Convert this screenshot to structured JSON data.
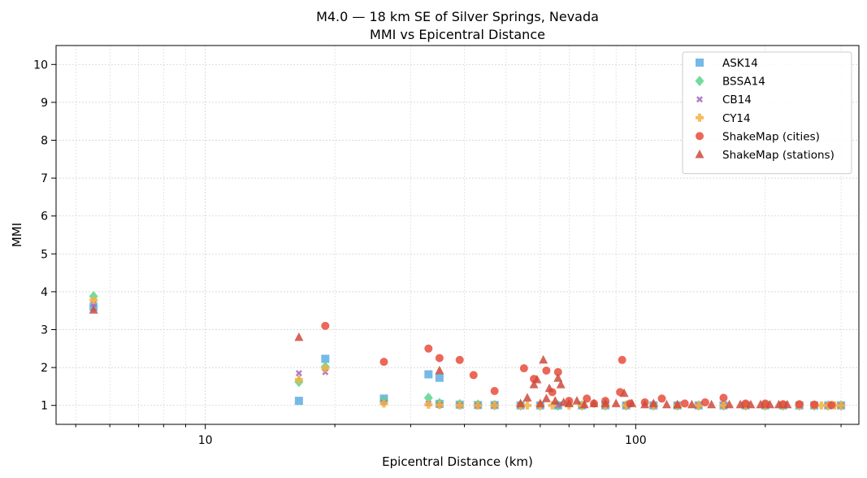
{
  "chart_data": {
    "type": "scatter",
    "title": "M4.0 — 18 km SE of Silver Springs, Nevada",
    "subtitle": "MMI vs Epicentral Distance",
    "xlabel": "Epicentral Distance (km)",
    "ylabel": "MMI",
    "xscale": "log",
    "xlim": [
      4.5,
      330
    ],
    "ylim": [
      0.5,
      10.5
    ],
    "xticks": [
      10,
      100
    ],
    "xtick_labels": [
      "10",
      "100"
    ],
    "yticks": [
      1,
      2,
      3,
      4,
      5,
      6,
      7,
      8,
      9,
      10
    ],
    "ytick_labels": [
      "1",
      "2",
      "3",
      "4",
      "5",
      "6",
      "7",
      "8",
      "9",
      "10"
    ],
    "grid": true,
    "legend_position": "top-right",
    "series": [
      {
        "name": "ASK14",
        "marker": "square",
        "color": "#5DADE2",
        "x": [
          5.5,
          16.5,
          19,
          26,
          33,
          35,
          35,
          39,
          43,
          47,
          54,
          60,
          66,
          75,
          85,
          95,
          110,
          125,
          140,
          160,
          180,
          200,
          220,
          240,
          260,
          280,
          300
        ],
        "y": [
          3.6,
          1.12,
          2.23,
          1.18,
          1.82,
          1.73,
          1.04,
          1.02,
          1.01,
          1.01,
          1.0,
          1.0,
          1.0,
          1.0,
          1.0,
          1.0,
          1.0,
          1.0,
          1.0,
          1.0,
          1.0,
          1.0,
          1.0,
          1.0,
          1.0,
          1.0,
          1.0
        ]
      },
      {
        "name": "BSSA14",
        "marker": "diamond",
        "color": "#58D68D",
        "x": [
          5.5,
          16.5,
          19,
          26,
          33,
          35,
          39,
          43,
          47,
          54,
          60,
          66,
          75,
          85,
          95,
          110,
          125,
          140,
          160,
          180,
          200,
          220,
          240,
          260,
          280,
          300
        ],
        "y": [
          3.88,
          1.62,
          2.02,
          1.12,
          1.2,
          1.06,
          1.03,
          1.02,
          1.01,
          1.0,
          1.0,
          1.0,
          1.0,
          1.0,
          1.0,
          1.0,
          1.0,
          1.0,
          1.0,
          1.0,
          1.0,
          1.0,
          1.0,
          1.0,
          1.0,
          1.0
        ]
      },
      {
        "name": "CB14",
        "marker": "x",
        "color": "#A569BD",
        "x": [
          5.5,
          16.5,
          19,
          26,
          33,
          35,
          39,
          43,
          47,
          54,
          60,
          66,
          75,
          85,
          95,
          110,
          125,
          140,
          160,
          180,
          200,
          220,
          240,
          260,
          280,
          300
        ],
        "y": [
          3.68,
          1.85,
          1.88,
          1.08,
          1.05,
          1.02,
          1.01,
          1.0,
          1.0,
          1.0,
          1.0,
          1.0,
          1.0,
          1.0,
          1.0,
          1.0,
          1.0,
          1.0,
          1.0,
          1.0,
          1.0,
          1.0,
          1.0,
          1.0,
          1.0,
          1.0
        ]
      },
      {
        "name": "CY14",
        "marker": "plus",
        "color": "#F5B041",
        "x": [
          5.5,
          16.5,
          19,
          26,
          33,
          35,
          39,
          43,
          47,
          54,
          56,
          60,
          64,
          70,
          75,
          85,
          95,
          110,
          125,
          140,
          160,
          180,
          200,
          220,
          240,
          260,
          270,
          280,
          290,
          300
        ],
        "y": [
          3.78,
          1.68,
          1.98,
          1.05,
          1.02,
          1.01,
          1.0,
          1.0,
          1.0,
          1.0,
          1.0,
          1.0,
          1.0,
          1.0,
          1.0,
          1.0,
          1.0,
          1.0,
          1.0,
          1.0,
          1.0,
          1.0,
          1.0,
          1.0,
          1.0,
          1.0,
          1.0,
          1.0,
          1.0,
          1.0
        ]
      },
      {
        "name": "ShakeMap (cities)",
        "marker": "circle",
        "color": "#E74C3C",
        "x": [
          19,
          26,
          33,
          35,
          39,
          42,
          47,
          55,
          58,
          62,
          64,
          66,
          70,
          77,
          80,
          85,
          92,
          93,
          97,
          105,
          115,
          130,
          145,
          160,
          180,
          200,
          220,
          240,
          260,
          285
        ],
        "y": [
          3.1,
          2.15,
          2.5,
          2.25,
          2.2,
          1.8,
          1.38,
          1.98,
          1.7,
          1.92,
          1.35,
          1.88,
          1.12,
          1.18,
          1.05,
          1.12,
          1.35,
          2.2,
          1.05,
          1.08,
          1.18,
          1.05,
          1.08,
          1.2,
          1.05,
          1.05,
          1.03,
          1.03,
          1.02,
          1.01
        ],
        "y_unused": []
      },
      {
        "name": "ShakeMap (stations)",
        "marker": "triangle",
        "color": "#CD4B3C",
        "x": [
          5.5,
          16.5,
          35,
          54,
          56,
          58,
          59,
          60,
          61,
          62,
          63,
          65,
          66,
          67,
          68,
          70,
          73,
          76,
          80,
          85,
          90,
          94,
          98,
          105,
          110,
          118,
          125,
          135,
          150,
          165,
          175,
          185,
          195,
          205,
          215,
          225
        ],
        "y": [
          3.52,
          2.8,
          1.92,
          1.05,
          1.2,
          1.55,
          1.68,
          1.05,
          2.2,
          1.18,
          1.45,
          1.12,
          1.72,
          1.55,
          1.08,
          1.05,
          1.12,
          1.02,
          1.05,
          1.05,
          1.05,
          1.32,
          1.05,
          1.02,
          1.05,
          1.02,
          1.02,
          1.02,
          1.02,
          1.02,
          1.02,
          1.02,
          1.02,
          1.02,
          1.02,
          1.02
        ]
      }
    ]
  }
}
